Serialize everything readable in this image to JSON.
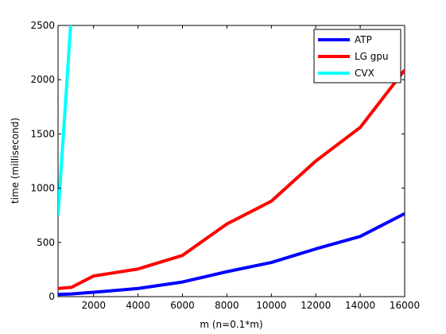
{
  "chart_data": {
    "type": "line",
    "xlabel": "m (n=0.1*m)",
    "ylabel": "time (millisecond)",
    "xlim": [
      400,
      16000
    ],
    "ylim": [
      0,
      2500
    ],
    "xticks": [
      2000,
      4000,
      6000,
      8000,
      10000,
      12000,
      14000,
      16000
    ],
    "yticks": [
      0,
      500,
      1000,
      1500,
      2000,
      2500
    ],
    "grid": false,
    "legend_position": "top-right",
    "series": [
      {
        "name": "ATP",
        "color": "#0000ff",
        "x": [
          400,
          1000,
          2000,
          4000,
          6000,
          8000,
          10000,
          12000,
          14000,
          16000
        ],
        "y": [
          20,
          25,
          40,
          75,
          135,
          230,
          315,
          440,
          555,
          765
        ]
      },
      {
        "name": "LG gpu",
        "color": "#ff0000",
        "x": [
          400,
          1000,
          2000,
          4000,
          6000,
          8000,
          10000,
          12000,
          14000,
          16000
        ],
        "y": [
          75,
          85,
          190,
          255,
          380,
          670,
          880,
          1250,
          1560,
          2090
        ]
      },
      {
        "name": "CVX",
        "color": "#00ffff",
        "x": [
          400,
          1000
        ],
        "y": [
          750,
          2600
        ]
      }
    ]
  }
}
